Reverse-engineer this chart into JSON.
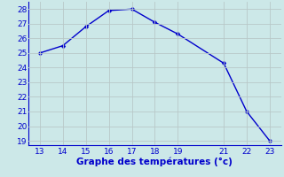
{
  "x": [
    13,
    14,
    15,
    16,
    17,
    18,
    19,
    21,
    22,
    23
  ],
  "y": [
    25.0,
    25.5,
    26.8,
    27.9,
    28.0,
    27.1,
    26.3,
    24.3,
    21.0,
    19.0
  ],
  "xlim": [
    12.5,
    23.5
  ],
  "ylim_min": 18.7,
  "ylim_max": 28.5,
  "xticks": [
    13,
    14,
    15,
    16,
    17,
    18,
    19,
    21,
    22,
    23
  ],
  "yticks": [
    19,
    20,
    21,
    22,
    23,
    24,
    25,
    26,
    27,
    28
  ],
  "xlabel": "Graphe des températures (°c)",
  "line_color": "#0000cc",
  "marker_color": "#0000cc",
  "bg_color": "#cce8e8",
  "grid_color": "#b8c8c8",
  "axis_color": "#0000cc",
  "tick_color": "#0000cc",
  "label_fontsize": 6.5,
  "xlabel_fontsize": 7.5,
  "line_width": 1.0,
  "marker_size": 2.5
}
